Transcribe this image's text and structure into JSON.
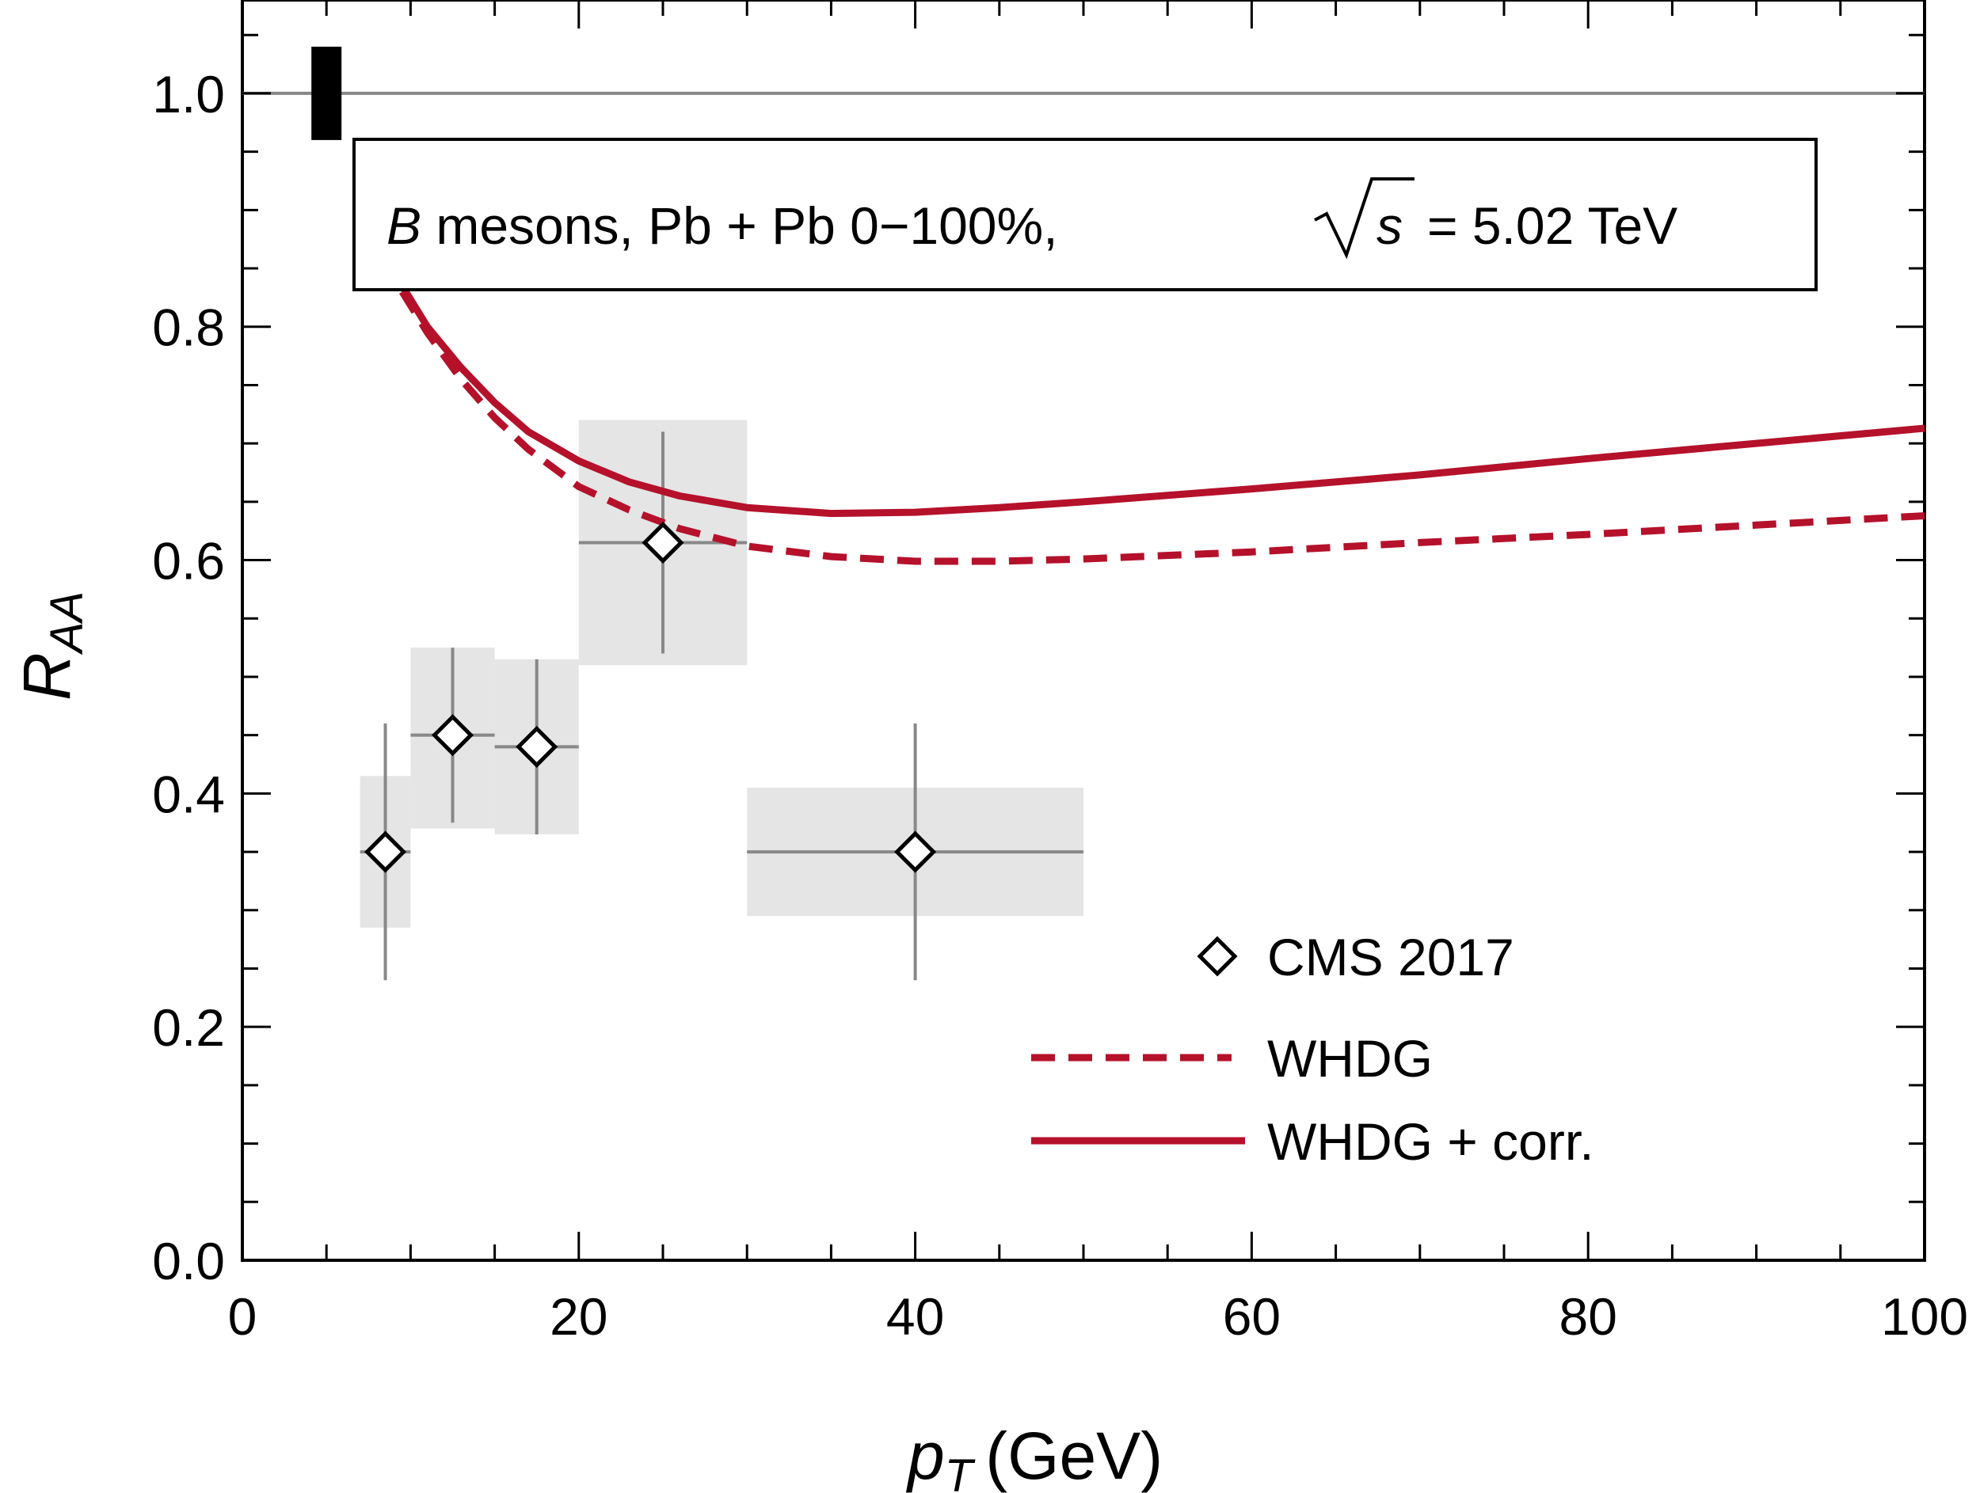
{
  "chart_data": {
    "type": "scatter",
    "annotation": {
      "particle": "B",
      "text": " mesons, Pb + Pb 0−100%,",
      "energy_symbol": "s",
      "energy_value": "= 5.02 TeV"
    },
    "xlabel": {
      "main": "p",
      "sub": "T",
      "unit": "(GeV)"
    },
    "ylabel": {
      "main": "R",
      "sub": "AA"
    },
    "xlim": [
      0,
      100
    ],
    "ylim": [
      0,
      1.08
    ],
    "xticks": [
      0,
      20,
      40,
      60,
      80,
      100
    ],
    "xtick_labels": [
      "0",
      "20",
      "40",
      "60",
      "80",
      "100"
    ],
    "yticks": [
      0.0,
      0.2,
      0.4,
      0.6,
      0.8,
      1.0
    ],
    "ytick_labels": [
      "0.0",
      "0.2",
      "0.4",
      "0.6",
      "0.8",
      "1.0"
    ],
    "reference_line": 1.0,
    "norm_uncertainty": {
      "x": 5,
      "low": 0.96,
      "high": 1.04
    },
    "series": [
      {
        "name": "CMS 2017",
        "kind": "points",
        "marker": "diamond",
        "color": "#000000",
        "points": [
          {
            "x": 8.5,
            "y": 0.35,
            "x_low": 7,
            "x_high": 10,
            "y_err_low": 0.11,
            "y_err_high": 0.11,
            "sys_low": 0.285,
            "sys_high": 0.415
          },
          {
            "x": 12.5,
            "y": 0.45,
            "x_low": 10,
            "x_high": 15,
            "y_err_low": 0.075,
            "y_err_high": 0.075,
            "sys_low": 0.37,
            "sys_high": 0.525
          },
          {
            "x": 17.5,
            "y": 0.44,
            "x_low": 15,
            "x_high": 20,
            "y_err_low": 0.075,
            "y_err_high": 0.075,
            "sys_low": 0.365,
            "sys_high": 0.515
          },
          {
            "x": 25,
            "y": 0.615,
            "x_low": 20,
            "x_high": 30,
            "y_err_low": 0.095,
            "y_err_high": 0.095,
            "sys_low": 0.51,
            "sys_high": 0.72
          },
          {
            "x": 40,
            "y": 0.35,
            "x_low": 30,
            "x_high": 50,
            "y_err_low": 0.11,
            "y_err_high": 0.11,
            "sys_low": 0.295,
            "sys_high": 0.405
          }
        ]
      },
      {
        "name": "WHDG",
        "kind": "line",
        "style": "dashed",
        "color": "#b5112b",
        "x": [
          9.5,
          11,
          13,
          15,
          17,
          20,
          23,
          26,
          30,
          35,
          40,
          45,
          50,
          60,
          70,
          80,
          90,
          100
        ],
        "y": [
          0.83,
          0.795,
          0.755,
          0.722,
          0.695,
          0.663,
          0.643,
          0.627,
          0.612,
          0.603,
          0.599,
          0.599,
          0.601,
          0.607,
          0.615,
          0.622,
          0.63,
          0.638
        ]
      },
      {
        "name": "WHDG + corr.",
        "kind": "line",
        "style": "solid",
        "color": "#b5112b",
        "x": [
          9.5,
          11,
          13,
          15,
          17,
          20,
          23,
          26,
          30,
          35,
          40,
          45,
          50,
          60,
          70,
          80,
          90,
          100
        ],
        "y": [
          0.835,
          0.8,
          0.765,
          0.735,
          0.71,
          0.685,
          0.667,
          0.655,
          0.645,
          0.64,
          0.641,
          0.645,
          0.65,
          0.661,
          0.673,
          0.687,
          0.7,
          0.713
        ]
      }
    ],
    "legend": {
      "position": "bottom-right",
      "entries": [
        "CMS 2017",
        "WHDG",
        "WHDG + corr."
      ]
    }
  }
}
